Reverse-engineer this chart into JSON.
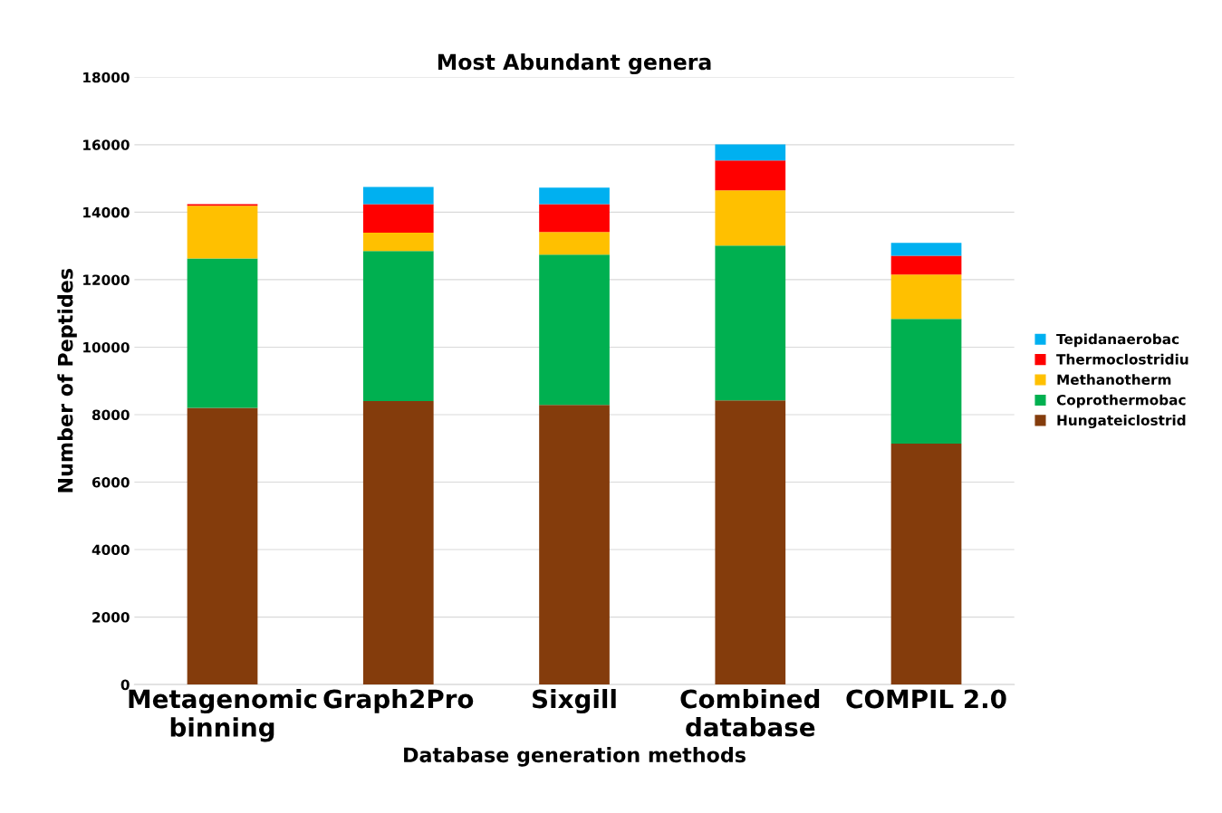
{
  "chart_data": {
    "type": "bar",
    "stacked": true,
    "title": "Most Abundant genera",
    "xlabel": "Database generation methods",
    "ylabel": "Number of Peptides",
    "categories": [
      "Metagenomic\nbinning",
      "Graph2Pro",
      "Sixgill",
      "Combined\ndatabase",
      "COMPIL 2.0"
    ],
    "series": [
      {
        "name": "Hungateiclostrid",
        "color": "#843c0c",
        "values": [
          8200,
          8400,
          8290,
          8420,
          7140
        ]
      },
      {
        "name": "Coprothermobac",
        "color": "#00b050",
        "values": [
          4430,
          4450,
          4450,
          4590,
          3700
        ]
      },
      {
        "name": "Methanotherm",
        "color": "#ffc000",
        "values": [
          1560,
          540,
          670,
          1640,
          1310
        ]
      },
      {
        "name": "Thermoclostridiu",
        "color": "#ff0000",
        "values": [
          50,
          850,
          830,
          880,
          560
        ]
      },
      {
        "name": "Tepidanaerobac",
        "color": "#00b0f0",
        "values": [
          0,
          510,
          490,
          480,
          380
        ]
      }
    ],
    "ylim": [
      0,
      18000
    ],
    "yticks": [
      0,
      2000,
      4000,
      6000,
      8000,
      10000,
      12000,
      14000,
      16000,
      18000
    ],
    "grid": "y",
    "legend": "right"
  }
}
